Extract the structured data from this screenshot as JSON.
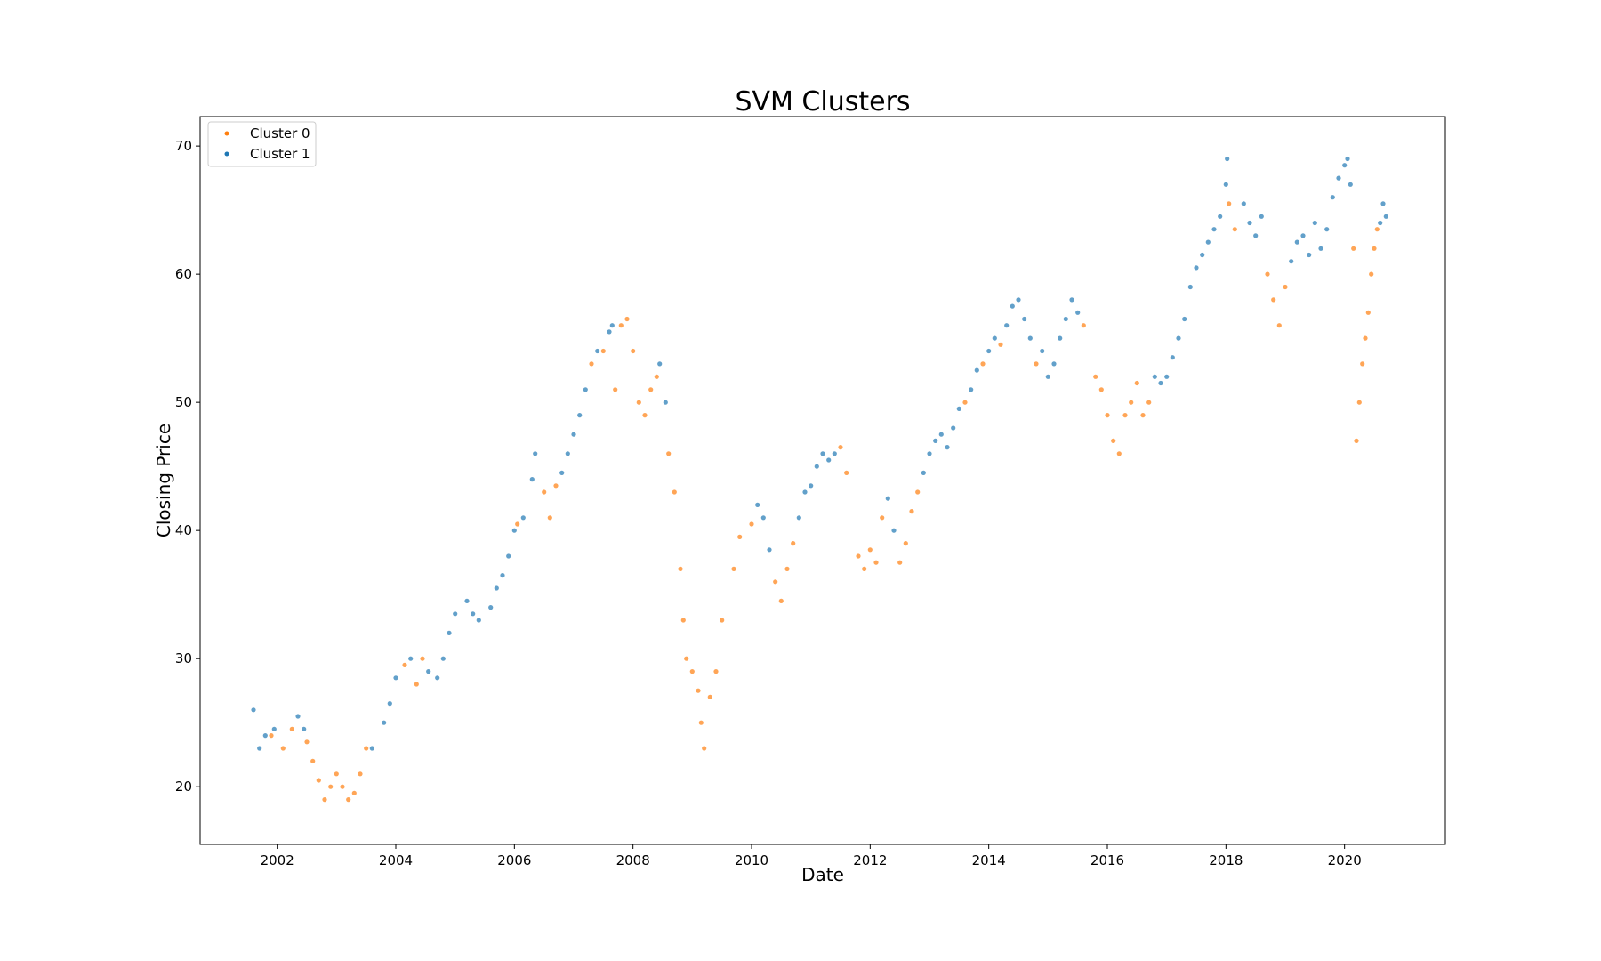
{
  "chart_data": {
    "type": "scatter",
    "title": "SVM Clusters",
    "xlabel": "Date",
    "ylabel": "Closing Price",
    "xlim": [
      2000.7,
      2021.7
    ],
    "ylim": [
      15.5,
      72.3
    ],
    "xticks": [
      "2002",
      "2004",
      "2006",
      "2008",
      "2010",
      "2012",
      "2014",
      "2016",
      "2018",
      "2020"
    ],
    "yticks": [
      "20",
      "30",
      "40",
      "50",
      "60",
      "70"
    ],
    "legend_position": "upper-left",
    "grid": false,
    "colors": {
      "cluster0": "#ff7f0e",
      "cluster1": "#1f77b4"
    },
    "series": [
      {
        "name": "Cluster 0",
        "color": "#ff7f0e",
        "points": [
          [
            2001.9,
            24.0
          ],
          [
            2002.1,
            23.0
          ],
          [
            2002.25,
            24.5
          ],
          [
            2002.5,
            23.5
          ],
          [
            2002.6,
            22.0
          ],
          [
            2002.7,
            20.5
          ],
          [
            2002.8,
            19.0
          ],
          [
            2002.9,
            20.0
          ],
          [
            2003.0,
            21.0
          ],
          [
            2003.1,
            20.0
          ],
          [
            2003.2,
            19.0
          ],
          [
            2003.3,
            19.5
          ],
          [
            2003.4,
            21.0
          ],
          [
            2003.5,
            23.0
          ],
          [
            2004.15,
            29.5
          ],
          [
            2004.35,
            28.0
          ],
          [
            2004.45,
            30.0
          ],
          [
            2006.05,
            40.5
          ],
          [
            2006.5,
            43.0
          ],
          [
            2006.6,
            41.0
          ],
          [
            2006.7,
            43.5
          ],
          [
            2007.3,
            53.0
          ],
          [
            2007.5,
            54.0
          ],
          [
            2007.7,
            51.0
          ],
          [
            2007.8,
            56.0
          ],
          [
            2007.9,
            56.5
          ],
          [
            2008.0,
            54.0
          ],
          [
            2008.1,
            50.0
          ],
          [
            2008.2,
            49.0
          ],
          [
            2008.3,
            51.0
          ],
          [
            2008.4,
            52.0
          ],
          [
            2008.6,
            46.0
          ],
          [
            2008.7,
            43.0
          ],
          [
            2008.8,
            37.0
          ],
          [
            2008.85,
            33.0
          ],
          [
            2008.9,
            30.0
          ],
          [
            2009.0,
            29.0
          ],
          [
            2009.1,
            27.5
          ],
          [
            2009.15,
            25.0
          ],
          [
            2009.2,
            23.0
          ],
          [
            2009.3,
            27.0
          ],
          [
            2009.4,
            29.0
          ],
          [
            2009.5,
            33.0
          ],
          [
            2009.7,
            37.0
          ],
          [
            2009.8,
            39.5
          ],
          [
            2010.0,
            40.5
          ],
          [
            2010.4,
            36.0
          ],
          [
            2010.5,
            34.5
          ],
          [
            2010.6,
            37.0
          ],
          [
            2010.7,
            39.0
          ],
          [
            2011.5,
            46.5
          ],
          [
            2011.6,
            44.5
          ],
          [
            2011.8,
            38.0
          ],
          [
            2011.9,
            37.0
          ],
          [
            2012.0,
            38.5
          ],
          [
            2012.1,
            37.5
          ],
          [
            2012.2,
            41.0
          ],
          [
            2012.5,
            37.5
          ],
          [
            2012.6,
            39.0
          ],
          [
            2012.7,
            41.5
          ],
          [
            2012.8,
            43.0
          ],
          [
            2013.6,
            50.0
          ],
          [
            2013.9,
            53.0
          ],
          [
            2014.2,
            54.5
          ],
          [
            2014.8,
            53.0
          ],
          [
            2015.6,
            56.0
          ],
          [
            2015.8,
            52.0
          ],
          [
            2015.9,
            51.0
          ],
          [
            2016.0,
            49.0
          ],
          [
            2016.1,
            47.0
          ],
          [
            2016.2,
            46.0
          ],
          [
            2016.3,
            49.0
          ],
          [
            2016.4,
            50.0
          ],
          [
            2016.5,
            51.5
          ],
          [
            2016.6,
            49.0
          ],
          [
            2016.7,
            50.0
          ],
          [
            2018.05,
            65.5
          ],
          [
            2018.15,
            63.5
          ],
          [
            2018.7,
            60.0
          ],
          [
            2018.8,
            58.0
          ],
          [
            2018.9,
            56.0
          ],
          [
            2019.0,
            59.0
          ],
          [
            2020.15,
            62.0
          ],
          [
            2020.2,
            47.0
          ],
          [
            2020.25,
            50.0
          ],
          [
            2020.3,
            53.0
          ],
          [
            2020.35,
            55.0
          ],
          [
            2020.4,
            57.0
          ],
          [
            2020.45,
            60.0
          ],
          [
            2020.5,
            62.0
          ],
          [
            2020.55,
            63.5
          ]
        ]
      },
      {
        "name": "Cluster 1",
        "color": "#1f77b4",
        "points": [
          [
            2001.6,
            26.0
          ],
          [
            2001.7,
            23.0
          ],
          [
            2001.8,
            24.0
          ],
          [
            2001.95,
            24.5
          ],
          [
            2002.35,
            25.5
          ],
          [
            2002.45,
            24.5
          ],
          [
            2003.6,
            23.0
          ],
          [
            2003.8,
            25.0
          ],
          [
            2003.9,
            26.5
          ],
          [
            2004.0,
            28.5
          ],
          [
            2004.25,
            30.0
          ],
          [
            2004.55,
            29.0
          ],
          [
            2004.7,
            28.5
          ],
          [
            2004.8,
            30.0
          ],
          [
            2004.9,
            32.0
          ],
          [
            2005.0,
            33.5
          ],
          [
            2005.2,
            34.5
          ],
          [
            2005.3,
            33.5
          ],
          [
            2005.4,
            33.0
          ],
          [
            2005.6,
            34.0
          ],
          [
            2005.7,
            35.5
          ],
          [
            2005.8,
            36.5
          ],
          [
            2005.9,
            38.0
          ],
          [
            2006.0,
            40.0
          ],
          [
            2006.15,
            41.0
          ],
          [
            2006.3,
            44.0
          ],
          [
            2006.35,
            46.0
          ],
          [
            2006.8,
            44.5
          ],
          [
            2006.9,
            46.0
          ],
          [
            2007.0,
            47.5
          ],
          [
            2007.1,
            49.0
          ],
          [
            2007.2,
            51.0
          ],
          [
            2007.4,
            54.0
          ],
          [
            2007.6,
            55.5
          ],
          [
            2007.65,
            56.0
          ],
          [
            2008.45,
            53.0
          ],
          [
            2008.55,
            50.0
          ],
          [
            2010.1,
            42.0
          ],
          [
            2010.2,
            41.0
          ],
          [
            2010.3,
            38.5
          ],
          [
            2010.8,
            41.0
          ],
          [
            2010.9,
            43.0
          ],
          [
            2011.0,
            43.5
          ],
          [
            2011.1,
            45.0
          ],
          [
            2011.2,
            46.0
          ],
          [
            2011.3,
            45.5
          ],
          [
            2011.4,
            46.0
          ],
          [
            2012.3,
            42.5
          ],
          [
            2012.4,
            40.0
          ],
          [
            2012.9,
            44.5
          ],
          [
            2013.0,
            46.0
          ],
          [
            2013.1,
            47.0
          ],
          [
            2013.2,
            47.5
          ],
          [
            2013.3,
            46.5
          ],
          [
            2013.4,
            48.0
          ],
          [
            2013.5,
            49.5
          ],
          [
            2013.7,
            51.0
          ],
          [
            2013.8,
            52.5
          ],
          [
            2014.0,
            54.0
          ],
          [
            2014.1,
            55.0
          ],
          [
            2014.3,
            56.0
          ],
          [
            2014.4,
            57.5
          ],
          [
            2014.5,
            58.0
          ],
          [
            2014.6,
            56.5
          ],
          [
            2014.7,
            55.0
          ],
          [
            2014.9,
            54.0
          ],
          [
            2015.0,
            52.0
          ],
          [
            2015.1,
            53.0
          ],
          [
            2015.2,
            55.0
          ],
          [
            2015.3,
            56.5
          ],
          [
            2015.4,
            58.0
          ],
          [
            2015.5,
            57.0
          ],
          [
            2016.8,
            52.0
          ],
          [
            2016.9,
            51.5
          ],
          [
            2017.0,
            52.0
          ],
          [
            2017.1,
            53.5
          ],
          [
            2017.2,
            55.0
          ],
          [
            2017.3,
            56.5
          ],
          [
            2017.4,
            59.0
          ],
          [
            2017.5,
            60.5
          ],
          [
            2017.6,
            61.5
          ],
          [
            2017.7,
            62.5
          ],
          [
            2017.8,
            63.5
          ],
          [
            2017.9,
            64.5
          ],
          [
            2018.0,
            67.0
          ],
          [
            2018.02,
            69.0
          ],
          [
            2018.3,
            65.5
          ],
          [
            2018.4,
            64.0
          ],
          [
            2018.5,
            63.0
          ],
          [
            2018.6,
            64.5
          ],
          [
            2019.1,
            61.0
          ],
          [
            2019.2,
            62.5
          ],
          [
            2019.3,
            63.0
          ],
          [
            2019.4,
            61.5
          ],
          [
            2019.5,
            64.0
          ],
          [
            2019.6,
            62.0
          ],
          [
            2019.7,
            63.5
          ],
          [
            2019.8,
            66.0
          ],
          [
            2019.9,
            67.5
          ],
          [
            2020.0,
            68.5
          ],
          [
            2020.05,
            69.0
          ],
          [
            2020.1,
            67.0
          ],
          [
            2020.6,
            64.0
          ],
          [
            2020.65,
            65.5
          ],
          [
            2020.7,
            64.5
          ]
        ]
      }
    ]
  }
}
